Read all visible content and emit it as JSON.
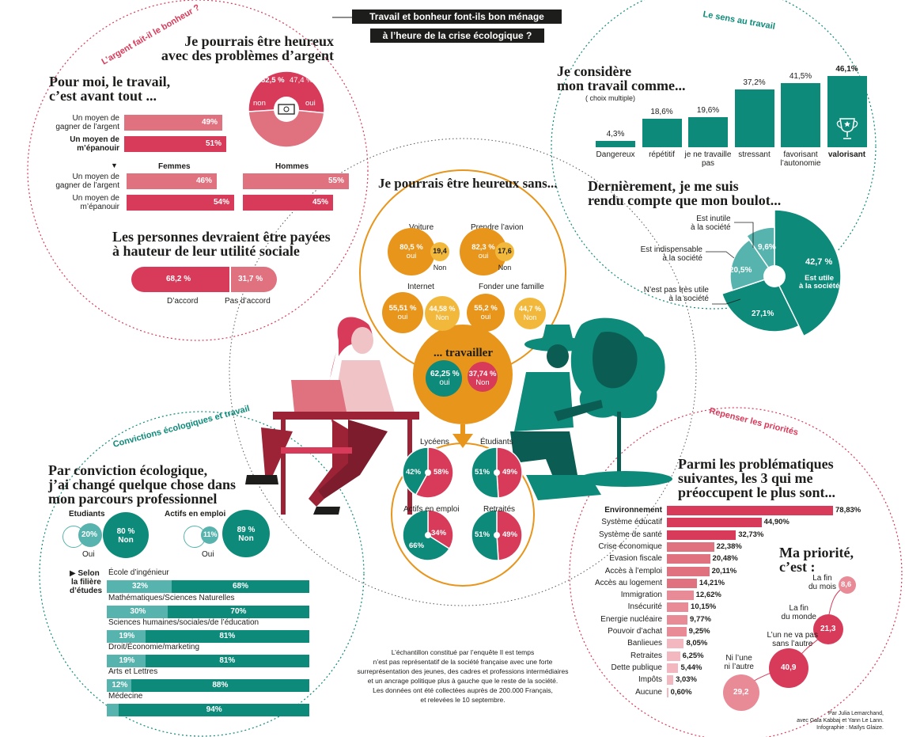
{
  "title": {
    "line1": "Travail et bonheur font-ils bon ménage",
    "line2": "à l’heure de la crise écologique ?"
  },
  "colors": {
    "rose": "#d83a59",
    "rose_light": "#e0717f",
    "teal": "#0d8a7a",
    "teal_light": "#57b3ad",
    "orange": "#e8951c",
    "orange_light": "#f2b83b",
    "dark": "#1d1d1b"
  },
  "sections": {
    "argent": "L’argent fait-il le bonheur ?",
    "sens": "Le sens au travail",
    "convictions": "Convictions écologiques et travail",
    "priorites": "Repenser les priorités"
  },
  "argent": {
    "heading_travail": [
      "Pour moi, le travail,",
      "c’est avant tout ..."
    ],
    "labels": [
      "Un moyen de",
      "gagner de l’argent",
      "Un moyen de",
      "m’épanouir"
    ],
    "femmes_label": "Femmes",
    "hommes_label": "Hommes",
    "heading_pauvre": [
      "Je pourrais être heureux",
      "avec des problèmes d’argent"
    ],
    "heading_payees": [
      "Les personnes devraient être payées",
      "à hauteur de leur utilité sociale"
    ],
    "accord_label": "D’accord",
    "pasaccord_label": "Pas d’accord"
  },
  "sens": {
    "heading_considere": [
      "Je considère",
      "mon travail comme..."
    ],
    "choix": "( choix multiple)",
    "heading_boulot": [
      "Dernièrement, je me suis",
      "rendu compte que mon boulot..."
    ],
    "pie_labels": [
      "Est inutile",
      "à la société",
      "Est indispensable",
      "à la société",
      "N’est pas très utile",
      "à la société",
      "Est utile",
      "à la société"
    ]
  },
  "centre": {
    "heading": "Je pourrais être heureux sans...",
    "items": [
      "Voiture",
      "Prendre l’avion",
      "Internet",
      "Fonder une famille"
    ],
    "values": [
      [
        "80,5 %",
        "oui",
        "19,4",
        "Non"
      ],
      [
        "82,3 %",
        "oui",
        "17,6",
        "Non"
      ],
      [
        "55,51 %",
        "oui",
        "44,58 %",
        "Non"
      ],
      [
        "55,2 %",
        "oui",
        "44,7 %",
        "Non"
      ]
    ],
    "travailler": "... travailler",
    "travailler_values": [
      "62,25 %",
      "oui",
      "37,74 %",
      "Non"
    ],
    "groups": [
      "Lycéens",
      "Étudiants",
      "Actifs en emploi",
      "Retraités"
    ]
  },
  "convictions": {
    "heading": [
      "Par conviction écologique,",
      "j’ai changé quelque chose dans",
      "mon parcours professionnel"
    ],
    "etudiants": "Etudiants",
    "actifs": "Actifs en emploi",
    "etudiants_oui": "20%",
    "etudiants_non": [
      "80 %",
      "Non"
    ],
    "actifs_oui": "11%",
    "actifs_non": [
      "89 %",
      "Non"
    ],
    "oui": "Oui",
    "filiere_label": [
      "▶ Selon",
      "la filière",
      "d’études"
    ]
  },
  "priorites": {
    "heading": [
      "Parmi les problématiques",
      "suivantes, les 3 qui me",
      "préoccupent le plus sont..."
    ],
    "heading_priorite": [
      "Ma priorité,",
      "c’est :"
    ],
    "bubbles": [
      [
        "La fin",
        "du mois",
        "8,6"
      ],
      [
        "La fin",
        "du monde",
        "21,3"
      ],
      [
        "L’un ne va pas",
        "sans l’autre",
        "40,9"
      ],
      [
        "Ni l’une",
        "ni l’autre",
        "29,2"
      ]
    ]
  },
  "footnote": [
    "L’échantillon constitué par l’enquête Il est temps",
    "n’est pas représentatif de la société française avec une forte",
    "surreprésentation des jeunes, des cadres et professions intermédiaires",
    "et un ancrage politique plus à gauche que le reste de la société.",
    "Les données ont été collectées auprès de 200.000 Français,",
    "et relevées le 10 septembre."
  ],
  "credits": [
    "Par Julia Lemarchand,",
    "avec Gaia Kabbaj et Yann Le Lann.",
    "Infographie : Maïlys Glaize."
  ],
  "chart_data": [
    {
      "type": "bar",
      "title": "Pour moi, le travail, c’est avant tout ...",
      "categories": [
        "Un moyen de gagner de l’argent",
        "Un moyen de m’épanouir"
      ],
      "values": [
        49,
        51
      ],
      "value_labels": [
        "49%",
        "51%"
      ]
    },
    {
      "type": "bar",
      "title": "Femmes / Hommes",
      "categories": [
        "Un moyen de gagner de l’argent",
        "Un moyen de m’épanouir"
      ],
      "series": [
        {
          "name": "Femmes",
          "values": [
            46,
            54
          ],
          "value_labels": [
            "46%",
            "54%"
          ]
        },
        {
          "name": "Hommes",
          "values": [
            55,
            45
          ],
          "value_labels": [
            "55%",
            "45%"
          ]
        }
      ]
    },
    {
      "type": "pie",
      "title": "Je pourrais être heureux avec des problèmes d’argent",
      "categories": [
        "non",
        "oui"
      ],
      "values": [
        52.5,
        47.4
      ],
      "value_labels": [
        "52,5 %",
        "47,4 %"
      ]
    },
    {
      "type": "bar",
      "title": "Les personnes devraient être payées à hauteur de leur utilité sociale",
      "categories": [
        "D’accord",
        "Pas d’accord"
      ],
      "values": [
        68.2,
        31.7
      ],
      "value_labels": [
        "68,2 %",
        "31,7 %"
      ]
    },
    {
      "type": "bar",
      "title": "Je considère mon travail comme...",
      "categories": [
        "Dangereux",
        "répétitif",
        "je ne travaille pas",
        "stressant",
        "favorisant l’autonomie",
        "valorisant"
      ],
      "values": [
        4.3,
        18.6,
        19.6,
        37.2,
        41.5,
        46.1
      ],
      "value_labels": [
        "4,3%",
        "18,6%",
        "19,6%",
        "37,2%",
        "41,5%",
        "46,1%"
      ]
    },
    {
      "type": "pie",
      "title": "Dernièrement, je me suis rendu compte que mon boulot...",
      "categories": [
        "Est inutile à la société",
        "Est indispensable à la société",
        "N’est pas très utile à la société",
        "Est utile à la société"
      ],
      "values": [
        9.6,
        20.5,
        27.1,
        42.7
      ],
      "value_labels": [
        "9,6%",
        "20,5%",
        "27,1%",
        "42,7 %"
      ]
    },
    {
      "type": "pie",
      "title": "Lycéens",
      "categories": [
        "oui",
        "non"
      ],
      "values": [
        42,
        58
      ],
      "value_labels": [
        "42%",
        "58%"
      ]
    },
    {
      "type": "pie",
      "title": "Étudiants",
      "categories": [
        "oui",
        "non"
      ],
      "values": [
        51,
        49
      ],
      "value_labels": [
        "51%",
        "49%"
      ]
    },
    {
      "type": "pie",
      "title": "Actifs en emploi",
      "categories": [
        "oui",
        "non"
      ],
      "values": [
        66,
        34
      ],
      "value_labels": [
        "66%",
        "34%"
      ]
    },
    {
      "type": "pie",
      "title": "Retraités",
      "categories": [
        "oui",
        "non"
      ],
      "values": [
        51,
        49
      ],
      "value_labels": [
        "51%",
        "49%"
      ]
    },
    {
      "type": "bar",
      "title": "Selon la filière d’études",
      "categories": [
        "École d’ingénieur",
        "Mathématiques/Sciences Naturelles",
        "Sciences humaines/sociales/de l’éducation",
        "Droit/Économie/marketing",
        "Arts et Lettres",
        "Médecine"
      ],
      "series": [
        {
          "name": "Oui",
          "values": [
            32,
            30,
            19,
            19,
            12,
            6
          ],
          "value_labels": [
            "32%",
            "30%",
            "19%",
            "19%",
            "12%",
            ""
          ]
        },
        {
          "name": "Non",
          "values": [
            68,
            70,
            81,
            81,
            88,
            94
          ],
          "value_labels": [
            "68%",
            "70%",
            "81%",
            "81%",
            "88%",
            "94%"
          ]
        }
      ]
    },
    {
      "type": "bar",
      "title": "Parmi les problématiques suivantes, les 3 qui me préoccupent le plus sont...",
      "categories": [
        "Environnement",
        "Système éducatif",
        "Système de santé",
        "Crise économique",
        "Evasion fiscale",
        "Accès à l’emploi",
        "Accès au logement",
        "Immigration",
        "Insécurité",
        "Energie nucléaire",
        "Pouvoir d’achat",
        "Banlieues",
        "Retraites",
        "Dette publique",
        "Impôts",
        "Aucune"
      ],
      "values": [
        78.83,
        44.9,
        32.73,
        22.38,
        20.48,
        20.11,
        14.21,
        12.62,
        10.15,
        9.77,
        9.25,
        8.05,
        6.25,
        5.44,
        3.03,
        0.6
      ],
      "value_labels": [
        "78,83%",
        "44,90%",
        "32,73%",
        "22,38%",
        "20,48%",
        "20,11%",
        "14,21%",
        "12,62%",
        "10,15%",
        "9,77%",
        "9,25%",
        "8,05%",
        "6,25%",
        "5,44%",
        "3,03%",
        "0,60%"
      ]
    },
    {
      "type": "pie",
      "title": "Ma priorité, c’est :",
      "categories": [
        "La fin du mois",
        "La fin du monde",
        "L’un ne va pas sans l’autre",
        "Ni l’une ni l’autre"
      ],
      "values": [
        8.6,
        21.3,
        40.9,
        29.2
      ],
      "value_labels": [
        "8,6",
        "21,3",
        "40,9",
        "29,2"
      ]
    }
  ]
}
